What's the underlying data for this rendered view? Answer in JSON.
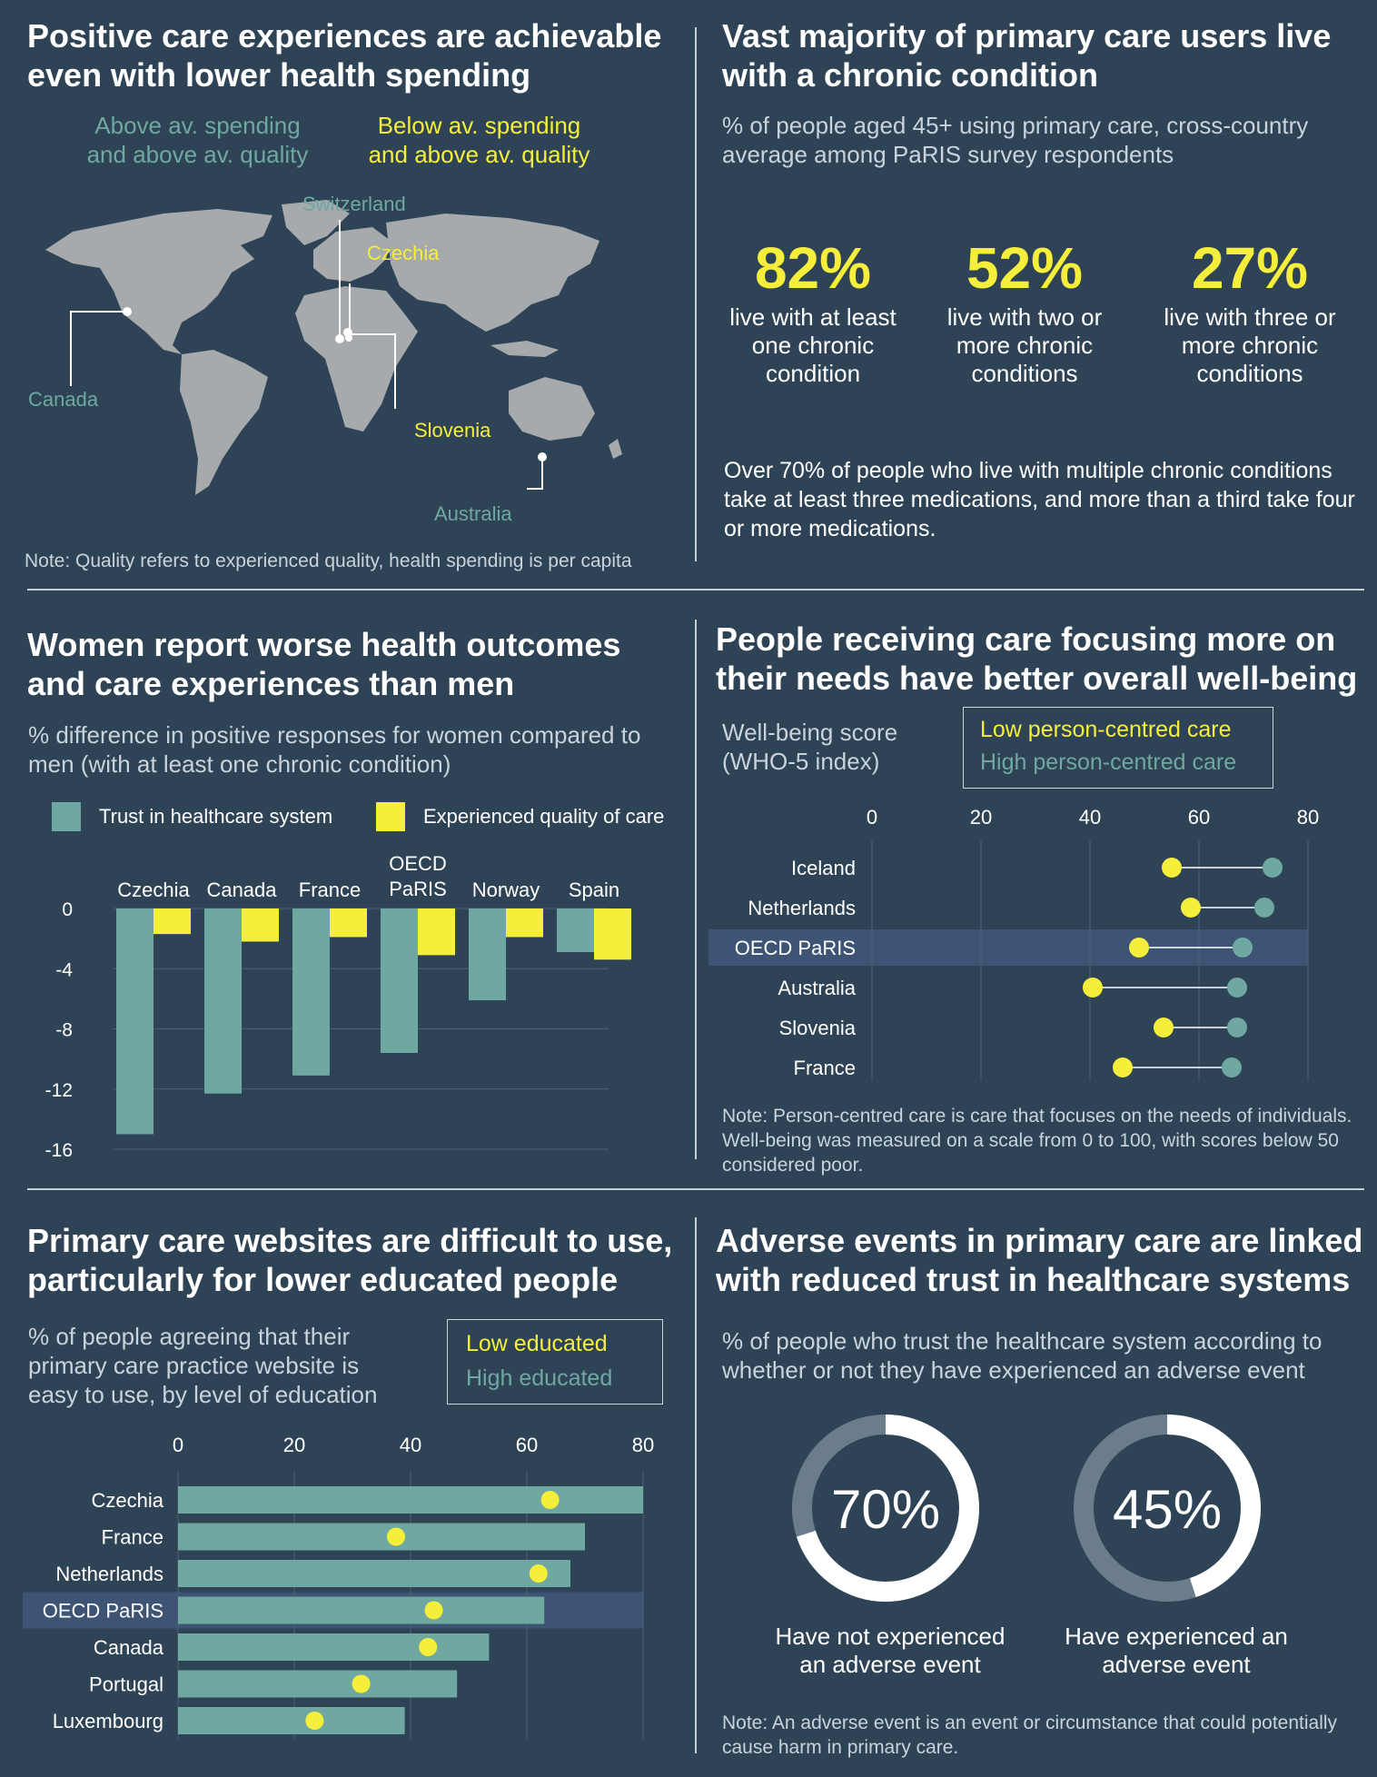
{
  "panel_map": {
    "title": "Positive care experiences are achievable even with lower health spending",
    "legend_teal": "Above av. spending and above av. quality",
    "legend_yellow": "Below av. spending and above av. quality",
    "labels": {
      "switzerland": "Switzerland",
      "czechia": "Czechia",
      "canada": "Canada",
      "slovenia": "Slovenia",
      "australia": "Australia"
    },
    "note": "Note: Quality refers to experienced quality, health spending is per capita"
  },
  "panel_chronic": {
    "title": "Vast majority of primary care users live with a chronic condition",
    "subtitle": "% of people aged 45+ using primary care, cross-country average among PaRIS survey respondents",
    "stats": [
      {
        "value": "82%",
        "caption": "live with at least one chronic condition"
      },
      {
        "value": "52%",
        "caption": "live with two or more chronic conditions"
      },
      {
        "value": "27%",
        "caption": "live with three or more chronic conditions"
      }
    ],
    "body": "Over 70% of people who live with multiple chronic conditions take at least three medications, and more than a third take four or more medications."
  },
  "panel_women": {
    "title": "Women report worse health outcomes and care experiences than men",
    "subtitle": "% difference in positive responses for women compared to men (with at least one chronic condition)",
    "legend": [
      "Trust in healthcare system",
      "Experienced quality of care"
    ]
  },
  "panel_wellbeing": {
    "title": "People receiving care focusing more on their needs have better overall well-being",
    "axis_title": "Well-being score (WHO-5 index)",
    "legend_low": "Low person-centred care",
    "legend_high": "High person-centred care",
    "note": "Note: Person-centred care is care that focuses on the needs of individuals. Well-being was measured on a scale from 0 to 100, with scores below 50 considered poor."
  },
  "panel_websites": {
    "title": "Primary care websites are difficult to use, particularly for lower educated people",
    "subtitle": "% of people agreeing that their primary care practice website is easy to use, by level of education",
    "legend_low": "Low educated",
    "legend_high": "High educated"
  },
  "panel_adverse": {
    "title": "Adverse events in primary care are linked with reduced trust in healthcare systems",
    "subtitle": "% of people who trust the healthcare system according to whether or not they have experienced an adverse event",
    "donuts": [
      {
        "label": "70%",
        "caption": "Have not experienced an adverse event"
      },
      {
        "label": "45%",
        "caption": "Have experienced an adverse event"
      }
    ],
    "note": "Note: An adverse event is an event or circumstance that could potentially cause harm in primary care."
  },
  "colors": {
    "background": "#2f4356",
    "teal": "#6fa8a0",
    "yellow": "#f5ee3a",
    "highlight_row": "#3d5474",
    "donut_track": "#6b7d8c"
  },
  "chart_data": [
    {
      "id": "women_vs_men",
      "type": "bar",
      "categories": [
        "Czechia",
        "Canada",
        "France",
        "OECD PaRIS",
        "Norway",
        "Spain"
      ],
      "series": [
        {
          "name": "Trust in healthcare system",
          "values": [
            -15.0,
            -12.3,
            -11.1,
            -9.6,
            -6.1,
            -2.9
          ]
        },
        {
          "name": "Experienced quality of care",
          "values": [
            -1.7,
            -2.2,
            -1.9,
            -3.1,
            -1.9,
            -3.4
          ]
        }
      ],
      "yticks": [
        0,
        -4,
        -8,
        -12,
        -16
      ],
      "ylim": [
        -16,
        0
      ]
    },
    {
      "id": "wellbeing",
      "type": "scatter",
      "categories": [
        "Iceland",
        "Netherlands",
        "OECD PaRIS",
        "Australia",
        "Slovenia",
        "France"
      ],
      "series": [
        {
          "name": "Low person-centred care",
          "values": [
            55,
            58.5,
            49,
            40.5,
            53.5,
            46
          ]
        },
        {
          "name": "High person-centred care",
          "values": [
            73.5,
            72,
            68,
            67,
            67,
            66
          ]
        }
      ],
      "xticks": [
        0,
        20,
        40,
        60,
        80
      ],
      "xlim": [
        0,
        80
      ],
      "highlight": "OECD PaRIS"
    },
    {
      "id": "websites",
      "type": "bar",
      "categories": [
        "Czechia",
        "France",
        "Netherlands",
        "OECD PaRIS",
        "Canada",
        "Portugal",
        "Luxembourg"
      ],
      "series": [
        {
          "name": "High educated",
          "values": [
            80,
            70,
            67.5,
            63,
            53.5,
            48,
            39
          ]
        },
        {
          "name": "Low educated",
          "values": [
            64,
            37.5,
            62,
            44,
            43,
            31.5,
            23.5
          ]
        }
      ],
      "xticks": [
        0,
        20,
        40,
        60,
        80
      ],
      "xlim": [
        0,
        80
      ],
      "highlight": "OECD PaRIS"
    },
    {
      "id": "adverse",
      "type": "pie",
      "categories": [
        "Have not experienced an adverse event",
        "Have experienced an adverse event"
      ],
      "values": [
        70,
        45
      ]
    }
  ]
}
